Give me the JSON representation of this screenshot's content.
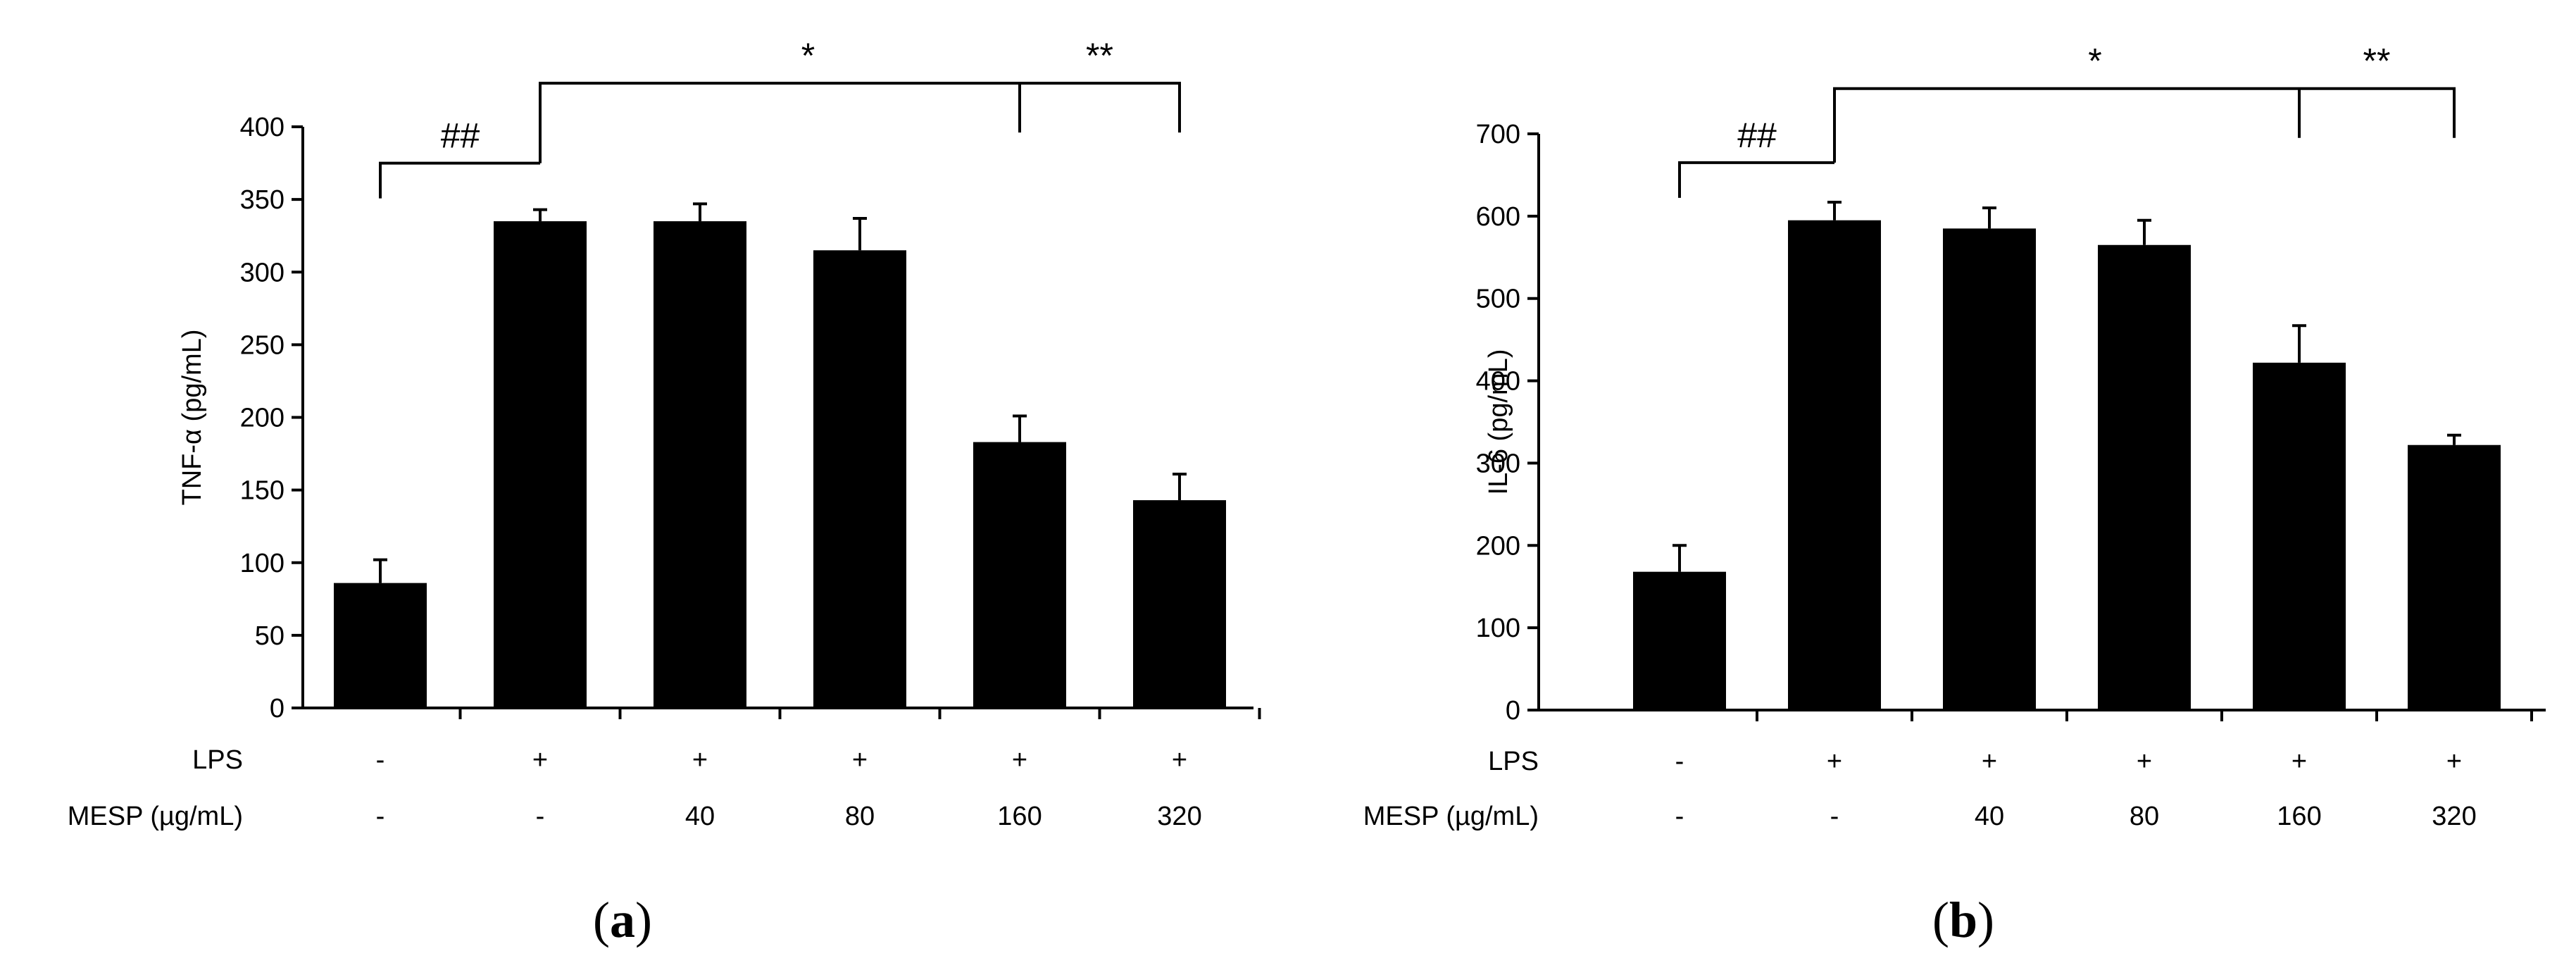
{
  "chart_data": [
    {
      "type": "bar",
      "panel": "a",
      "panel_label": {
        "open": "(",
        "letter": "a",
        "close": ")"
      },
      "ylabel": "TNF-α (pg/mL)",
      "ylim": [
        0,
        400
      ],
      "yticks": [
        0,
        50,
        100,
        150,
        200,
        250,
        300,
        350,
        400
      ],
      "grid": false,
      "row_labels": {
        "lps": "LPS",
        "mesp": "MESP (µg/mL)"
      },
      "categories_lps": [
        "-",
        "+",
        "+",
        "+",
        "+",
        "+"
      ],
      "categories_mesp": [
        "-",
        "-",
        "40",
        "80",
        "160",
        "320"
      ],
      "values": [
        86,
        335,
        335,
        315,
        183,
        143
      ],
      "errors": [
        16,
        8,
        12,
        22,
        18,
        18
      ],
      "color": "#000000",
      "significance": [
        {
          "label": "##",
          "from": 0,
          "to": 1,
          "level": 375
        },
        {
          "label": "*",
          "from": 1,
          "to": 4,
          "level": 430
        },
        {
          "label": "**",
          "from": 4,
          "to": 5,
          "level": 430
        }
      ]
    },
    {
      "type": "bar",
      "panel": "b",
      "panel_label": {
        "open": "(",
        "letter": "b",
        "close": ")"
      },
      "ylabel": "IL-6 (pg/mL)",
      "ylim": [
        0,
        700
      ],
      "yticks": [
        0,
        100,
        200,
        300,
        400,
        500,
        600,
        700
      ],
      "grid": false,
      "row_labels": {
        "lps": "LPS",
        "mesp": "MESP (µg/mL)"
      },
      "categories_lps": [
        "-",
        "+",
        "+",
        "+",
        "+",
        "+"
      ],
      "categories_mesp": [
        "-",
        "-",
        "40",
        "80",
        "160",
        "320"
      ],
      "values": [
        168,
        595,
        585,
        565,
        422,
        322
      ],
      "errors": [
        32,
        22,
        25,
        30,
        45,
        12
      ],
      "color": "#000000",
      "significance": [
        {
          "label": "##",
          "from": 0,
          "to": 1,
          "level": 665
        },
        {
          "label": "*",
          "from": 1,
          "to": 4,
          "level": 755
        },
        {
          "label": "**",
          "from": 4,
          "to": 5,
          "level": 755
        }
      ]
    }
  ]
}
